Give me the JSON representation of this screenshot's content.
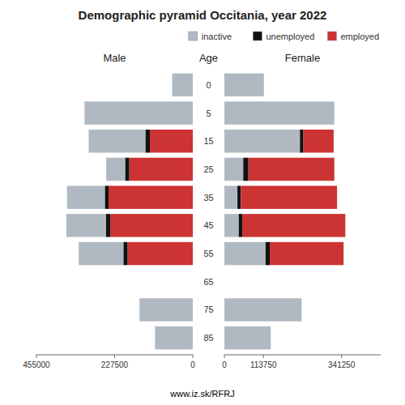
{
  "chart_data": [
    {
      "type": "bar",
      "orientation": "horizontal",
      "stacked": true,
      "title": "Demographic pyramid Occitania, year 2022",
      "subtitle": "www.iz.sk/RFRJ",
      "xlabel": "Male",
      "ylabel": "Age",
      "categories": [
        85,
        75,
        65,
        55,
        45,
        35,
        25,
        15,
        5,
        0
      ],
      "series": [
        {
          "name": "employed",
          "color": "#cc3333",
          "values": [
            0,
            0,
            0,
            190000,
            240000,
            245000,
            185000,
            125000,
            0,
            0
          ]
        },
        {
          "name": "unemployed",
          "color": "#111111",
          "values": [
            0,
            0,
            0,
            12000,
            13000,
            11000,
            12000,
            13000,
            0,
            0
          ]
        },
        {
          "name": "inactive",
          "color": "#b0b9c2",
          "values": [
            110000,
            155000,
            0,
            130000,
            115000,
            110000,
            55000,
            165000,
            315000,
            60000
          ]
        }
      ],
      "xlim": [
        455000,
        0
      ],
      "xticks": [
        455000,
        227500,
        0
      ],
      "grid": false
    },
    {
      "type": "bar",
      "orientation": "horizontal",
      "stacked": true,
      "xlabel": "Female",
      "categories": [
        85,
        75,
        65,
        55,
        45,
        35,
        25,
        15,
        5,
        0
      ],
      "series": [
        {
          "name": "inactive",
          "color": "#b0b9c2",
          "values": [
            135000,
            225000,
            0,
            120000,
            42000,
            38000,
            55000,
            220000,
            320000,
            115000
          ]
        },
        {
          "name": "unemployed",
          "color": "#111111",
          "values": [
            0,
            0,
            0,
            12000,
            10000,
            10000,
            15000,
            10000,
            0,
            0
          ]
        },
        {
          "name": "employed",
          "color": "#cc3333",
          "values": [
            0,
            0,
            0,
            215000,
            300000,
            280000,
            250000,
            88000,
            0,
            0
          ]
        }
      ],
      "xlim": [
        0,
        455000
      ],
      "xticks": [
        0,
        113750,
        341250
      ],
      "grid": false,
      "legend": "upper right"
    }
  ]
}
